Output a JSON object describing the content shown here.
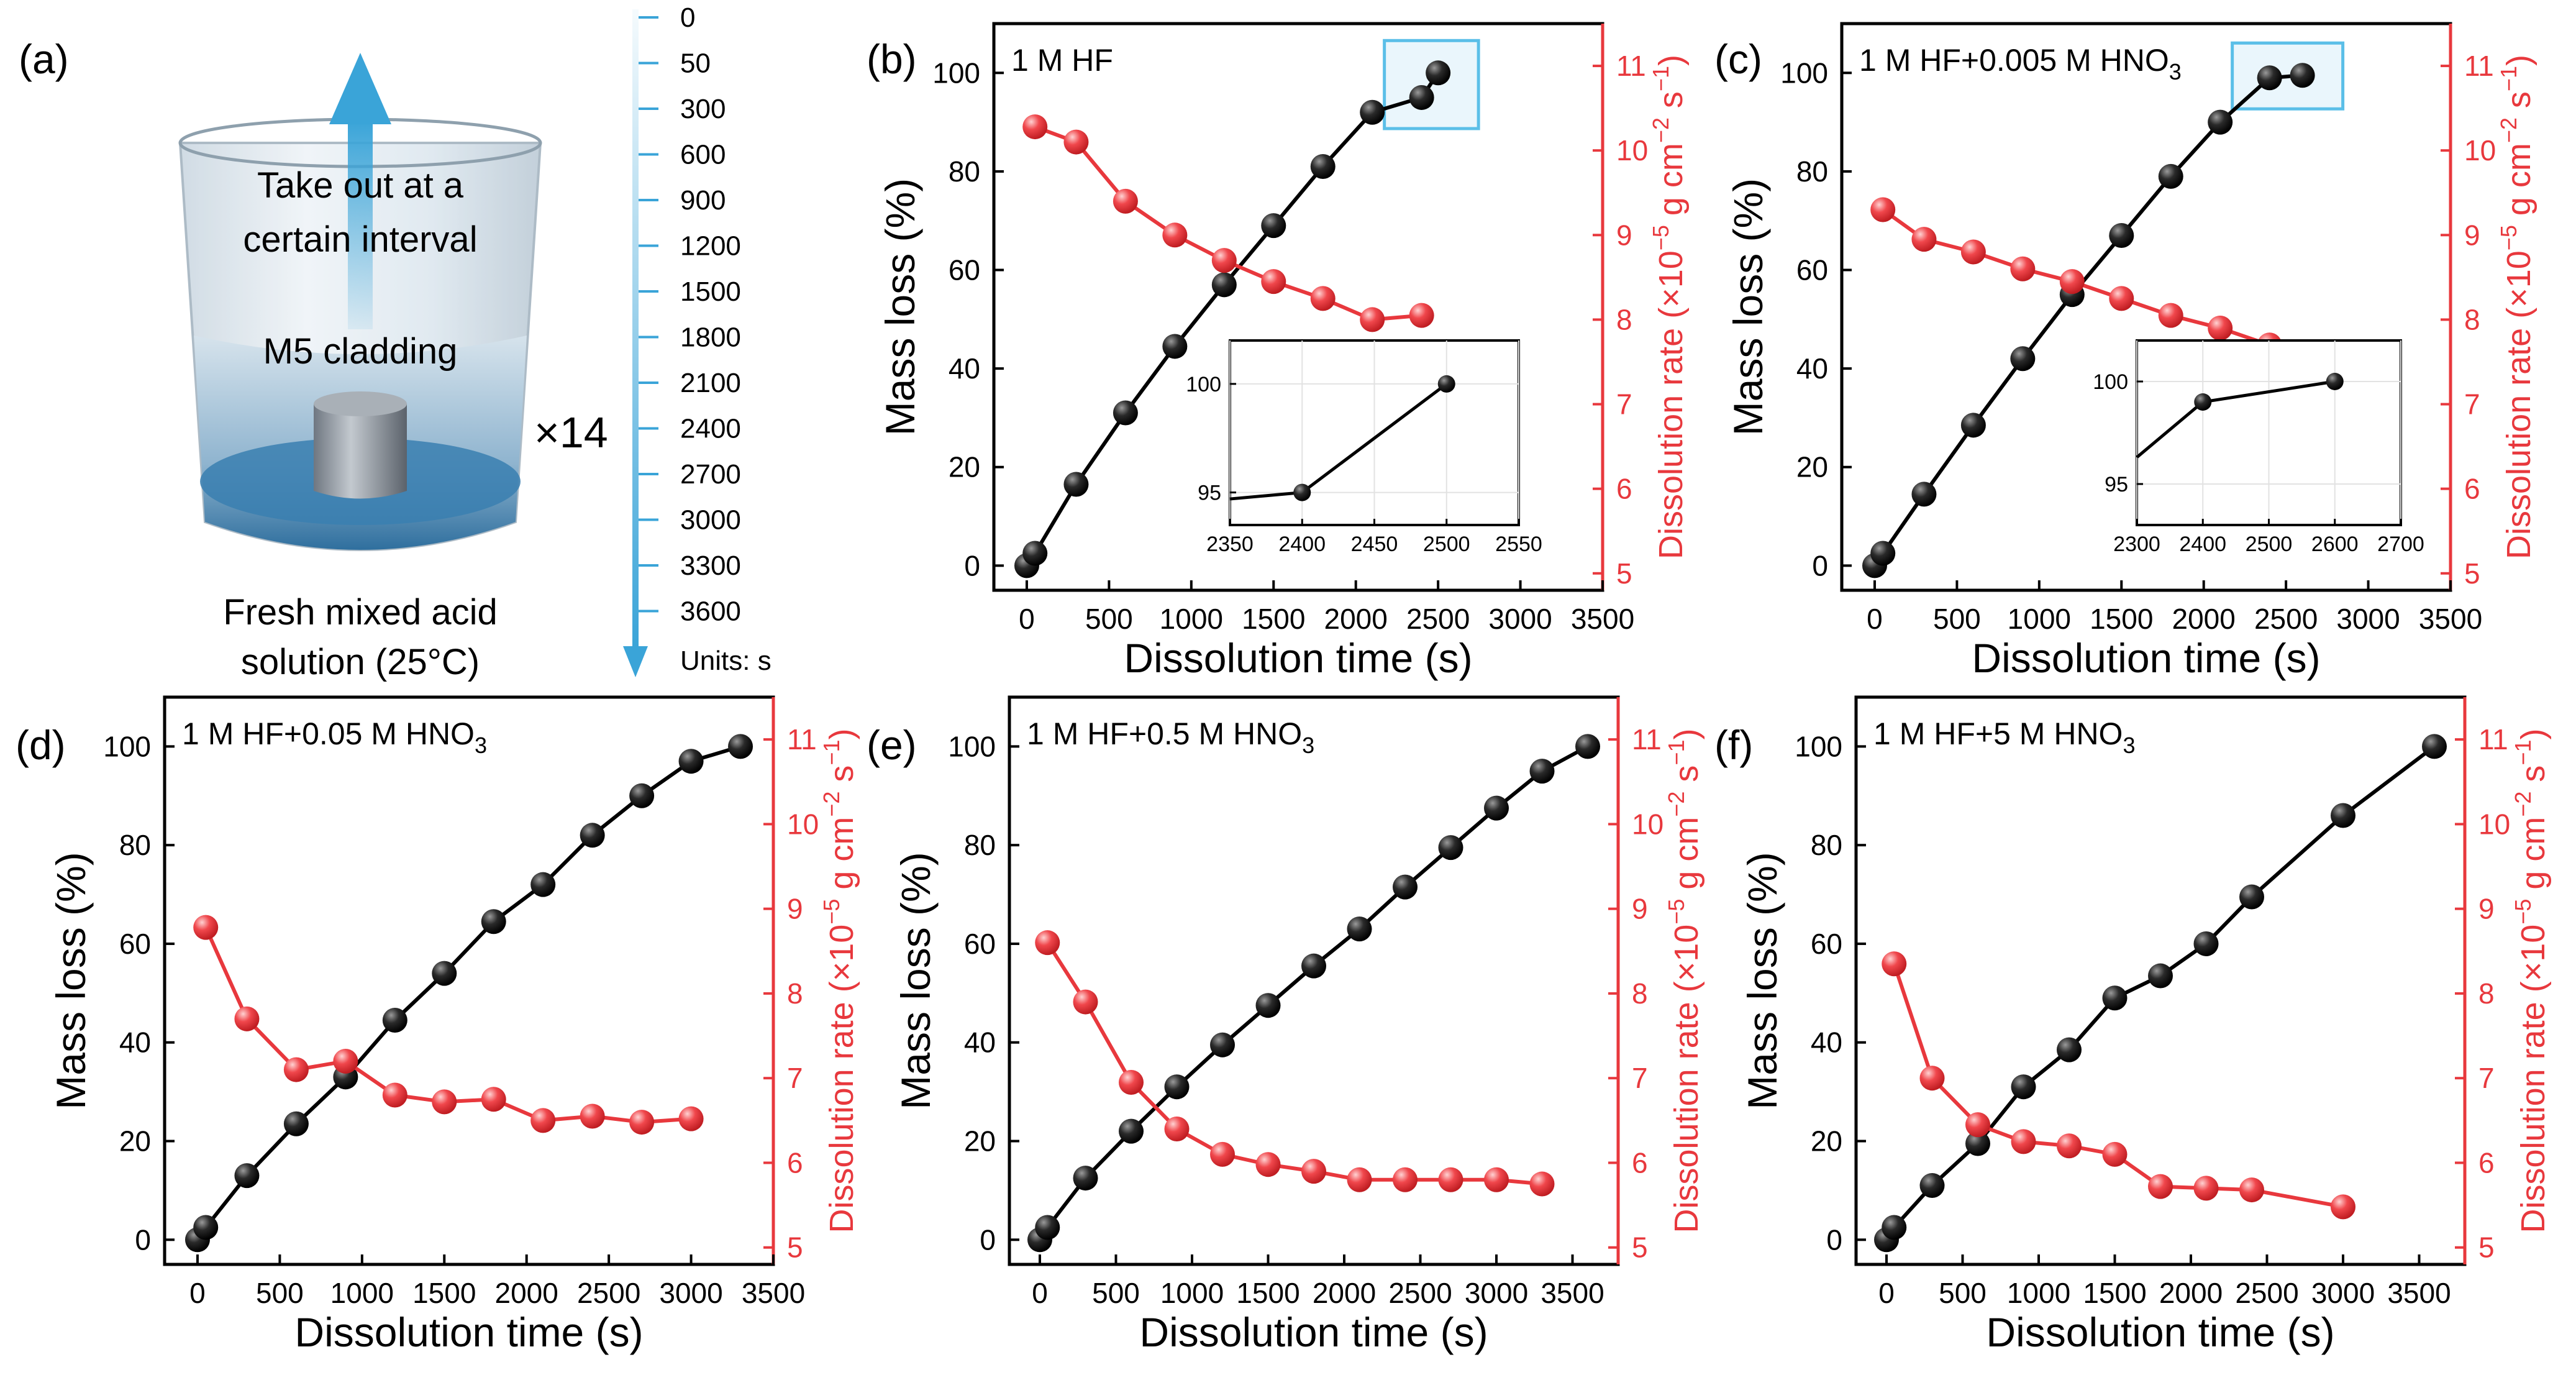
{
  "figure": {
    "schematic": {
      "panel_label": "(a)",
      "arrow_text_line1": "Take out at a",
      "arrow_text_line2": "certain interval",
      "specimen_label": "M5 cladding",
      "solution_line1": "Fresh mixed acid",
      "solution_line2": "solution (25°C)",
      "repeat_label": "×14",
      "time_scale_values": [
        "0",
        "50",
        "300",
        "600",
        "900",
        "1200",
        "1500",
        "1800",
        "2100",
        "2400",
        "2700",
        "3000",
        "3300",
        "3600"
      ],
      "time_scale_units": "Units: s"
    },
    "common_axis_labels": {
      "x": "Dissolution time (s)",
      "y_left": "Mass loss (%)",
      "y_right": "Dissolution rate (×10⁻⁵ g cm⁻² s⁻¹)"
    },
    "colors": {
      "mass": "#000000",
      "rate": "#e8383d",
      "highlight": "#5bbfe8",
      "water": "#3a7fb0",
      "arrow": "#3aa4d8"
    }
  },
  "chart_data": [
    {
      "panel": "(b)",
      "type": "line",
      "title": "1 M HF",
      "xlabel": "Dissolution time (s)",
      "ylabel": "Mass loss (%)",
      "y2label": "Dissolution rate (×10⁻⁵ g cm⁻² s⁻¹)",
      "xlim": [
        -200,
        3500
      ],
      "ylim": [
        -5,
        110
      ],
      "y2lim": [
        4.8,
        11.5
      ],
      "xticks": [
        0,
        500,
        1000,
        1500,
        2000,
        2500,
        3000,
        3500
      ],
      "yticks": [
        0,
        20,
        40,
        60,
        80,
        100
      ],
      "y2ticks": [
        5,
        6,
        7,
        8,
        9,
        10,
        11
      ],
      "series": [
        {
          "name": "Mass loss",
          "axis": "left",
          "x": [
            0,
            50,
            300,
            600,
            900,
            1200,
            1500,
            1800,
            2100,
            2400,
            2500
          ],
          "y": [
            0,
            2.5,
            16.5,
            31,
            44.5,
            57,
            69,
            81,
            92,
            95,
            100
          ]
        },
        {
          "name": "Dissolution rate",
          "axis": "right",
          "x": [
            50,
            300,
            600,
            900,
            1200,
            1500,
            1800,
            2100,
            2400
          ],
          "y": [
            10.28,
            10.1,
            9.4,
            9.0,
            8.7,
            8.45,
            8.25,
            8.0,
            8.05
          ]
        }
      ],
      "inset": {
        "xlim": [
          2350,
          2550
        ],
        "ylim": [
          93.5,
          102
        ],
        "xticks": [
          2350,
          2400,
          2450,
          2500,
          2550
        ],
        "yticks": [
          95,
          100
        ],
        "x": [
          2350,
          2400,
          2500
        ],
        "y": [
          94.7,
          95,
          100
        ]
      },
      "highlight_box": true
    },
    {
      "panel": "(c)",
      "type": "line",
      "title": "1 M HF+0.005 M HNO₃",
      "xlabel": "Dissolution time (s)",
      "ylabel": "Mass loss (%)",
      "y2label": "Dissolution rate (×10⁻⁵ g cm⁻² s⁻¹)",
      "xlim": [
        -200,
        3500
      ],
      "ylim": [
        -5,
        110
      ],
      "y2lim": [
        4.8,
        11.5
      ],
      "xticks": [
        0,
        500,
        1000,
        1500,
        2000,
        2500,
        3000,
        3500
      ],
      "yticks": [
        0,
        20,
        40,
        60,
        80,
        100
      ],
      "y2ticks": [
        5,
        6,
        7,
        8,
        9,
        10,
        11
      ],
      "series": [
        {
          "name": "Mass loss",
          "axis": "left",
          "x": [
            0,
            50,
            300,
            600,
            900,
            1200,
            1500,
            1800,
            2100,
            2400,
            2600
          ],
          "y": [
            0,
            2.5,
            14.5,
            28.5,
            42,
            55,
            67,
            79,
            90,
            99,
            99.5
          ]
        },
        {
          "name": "Dissolution rate",
          "axis": "right",
          "x": [
            50,
            300,
            600,
            900,
            1200,
            1500,
            1800,
            2100,
            2400
          ],
          "y": [
            9.3,
            8.95,
            8.8,
            8.6,
            8.45,
            8.25,
            8.05,
            7.9,
            7.7
          ]
        }
      ],
      "inset": {
        "xlim": [
          2300,
          2700
        ],
        "ylim": [
          93,
          102
        ],
        "xticks": [
          2300,
          2400,
          2500,
          2600,
          2700
        ],
        "yticks": [
          95,
          100
        ],
        "x": [
          2300,
          2400,
          2600
        ],
        "y": [
          96.3,
          99,
          100
        ]
      },
      "highlight_box": true
    },
    {
      "panel": "(d)",
      "type": "line",
      "title": "1 M HF+0.05 M HNO₃",
      "xlabel": "Dissolution time (s)",
      "ylabel": "Mass loss (%)",
      "y2label": "Dissolution rate (×10⁻⁵ g cm⁻² s⁻¹)",
      "xlim": [
        -200,
        3500
      ],
      "ylim": [
        -5,
        110
      ],
      "y2lim": [
        4.8,
        11.5
      ],
      "xticks": [
        0,
        500,
        1000,
        1500,
        2000,
        2500,
        3000,
        3500
      ],
      "yticks": [
        0,
        20,
        40,
        60,
        80,
        100
      ],
      "y2ticks": [
        5,
        6,
        7,
        8,
        9,
        10,
        11
      ],
      "series": [
        {
          "name": "Mass loss",
          "axis": "left",
          "x": [
            0,
            50,
            300,
            600,
            900,
            1200,
            1500,
            1800,
            2100,
            2400,
            2700,
            3000,
            3300
          ],
          "y": [
            0,
            2.5,
            13,
            23.5,
            33,
            44.5,
            54,
            64.5,
            72,
            82,
            90,
            97,
            100
          ]
        },
        {
          "name": "Dissolution rate",
          "axis": "right",
          "x": [
            50,
            300,
            600,
            900,
            1200,
            1500,
            1800,
            2100,
            2400,
            2700,
            3000
          ],
          "y": [
            8.78,
            7.7,
            7.1,
            7.2,
            6.8,
            6.72,
            6.75,
            6.5,
            6.55,
            6.48,
            6.52
          ]
        }
      ]
    },
    {
      "panel": "(e)",
      "type": "line",
      "title": "1 M HF+0.5 M HNO₃",
      "xlabel": "Dissolution time (s)",
      "ylabel": "Mass loss (%)",
      "y2label": "Dissolution rate (×10⁻⁵ g cm⁻² s⁻¹)",
      "xlim": [
        -200,
        3800
      ],
      "ylim": [
        -5,
        110
      ],
      "y2lim": [
        4.8,
        11.5
      ],
      "xticks": [
        0,
        500,
        1000,
        1500,
        2000,
        2500,
        3000,
        3500
      ],
      "yticks": [
        0,
        20,
        40,
        60,
        80,
        100
      ],
      "y2ticks": [
        5,
        6,
        7,
        8,
        9,
        10,
        11
      ],
      "series": [
        {
          "name": "Mass loss",
          "axis": "left",
          "x": [
            0,
            50,
            300,
            600,
            900,
            1200,
            1500,
            1800,
            2100,
            2400,
            2700,
            3000,
            3300,
            3600
          ],
          "y": [
            0,
            2.5,
            12.5,
            22,
            31,
            39.5,
            47.5,
            55.5,
            63,
            71.5,
            79.5,
            87.5,
            95,
            100
          ]
        },
        {
          "name": "Dissolution rate",
          "axis": "right",
          "x": [
            50,
            300,
            600,
            900,
            1200,
            1500,
            1800,
            2100,
            2400,
            2700,
            3000,
            3300
          ],
          "y": [
            8.6,
            7.9,
            6.95,
            6.4,
            6.1,
            5.98,
            5.9,
            5.8,
            5.8,
            5.8,
            5.8,
            5.75
          ]
        }
      ]
    },
    {
      "panel": "(f)",
      "type": "line",
      "title": "1 M HF+5 M HNO₃",
      "xlabel": "Dissolution time (s)",
      "ylabel": "Mass loss (%)",
      "y2label": "Dissolution rate (×10⁻⁵ g cm⁻² s⁻¹)",
      "xlim": [
        -200,
        3800
      ],
      "ylim": [
        -5,
        110
      ],
      "y2lim": [
        4.8,
        11.5
      ],
      "xticks": [
        0,
        500,
        1000,
        1500,
        2000,
        2500,
        3000,
        3500
      ],
      "yticks": [
        0,
        20,
        40,
        60,
        80,
        100
      ],
      "y2ticks": [
        5,
        6,
        7,
        8,
        9,
        10,
        11
      ],
      "series": [
        {
          "name": "Mass loss",
          "axis": "left",
          "x": [
            0,
            50,
            300,
            600,
            900,
            1200,
            1500,
            1800,
            2100,
            2400,
            3000,
            3600
          ],
          "y": [
            0,
            2.5,
            11,
            19.5,
            31,
            38.5,
            49,
            53.5,
            60,
            69.5,
            86,
            100
          ]
        },
        {
          "name": "Dissolution rate",
          "axis": "right",
          "x": [
            50,
            300,
            600,
            900,
            1200,
            1500,
            1800,
            2100,
            2400,
            3000
          ],
          "y": [
            8.35,
            7.0,
            6.45,
            6.25,
            6.2,
            6.1,
            5.72,
            5.7,
            5.68,
            5.48
          ]
        }
      ]
    }
  ]
}
